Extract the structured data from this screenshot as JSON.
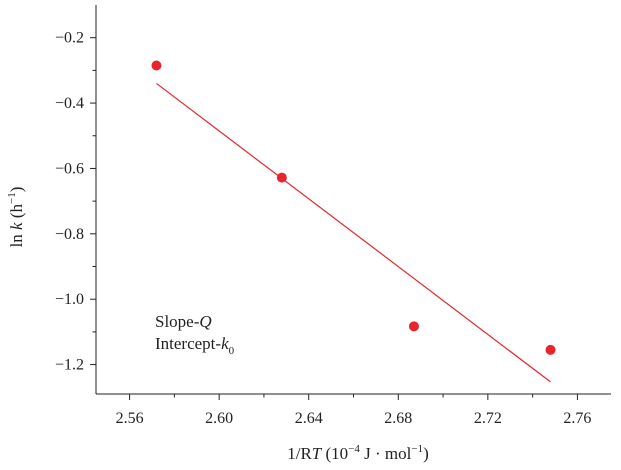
{
  "chart_data": {
    "type": "scatter",
    "xlabel": "1/RT (10⁻⁴ J · mol⁻¹)",
    "ylabel": "ln k (h⁻¹)",
    "xlim": [
      2.545,
      2.775
    ],
    "ylim": [
      -1.29,
      -0.1
    ],
    "xticks": [
      2.56,
      2.6,
      2.64,
      2.68,
      2.72,
      2.76
    ],
    "xtick_labels": [
      "2.56",
      "2.60",
      "2.64",
      "2.68",
      "2.72",
      "2.76"
    ],
    "yticks": [
      -0.2,
      -0.4,
      -0.6,
      -0.8,
      -1.0,
      -1.2
    ],
    "ytick_labels": [
      "−0.2",
      "−0.4",
      "−0.6",
      "−0.8",
      "−1.0",
      "−1.2"
    ],
    "series": [
      {
        "type": "scatter",
        "color": "#e8252d",
        "x": [
          2.572,
          2.628,
          2.687,
          2.748
        ],
        "y": [
          -0.285,
          -0.628,
          -1.083,
          -1.155
        ]
      },
      {
        "type": "line",
        "color": "#e8252d",
        "x": [
          2.572,
          2.748
        ],
        "y": [
          -0.34,
          -1.253
        ]
      }
    ],
    "annotations": [
      "Slope-Q",
      "Intercept-k0"
    ],
    "grid": false,
    "legend": "none"
  }
}
